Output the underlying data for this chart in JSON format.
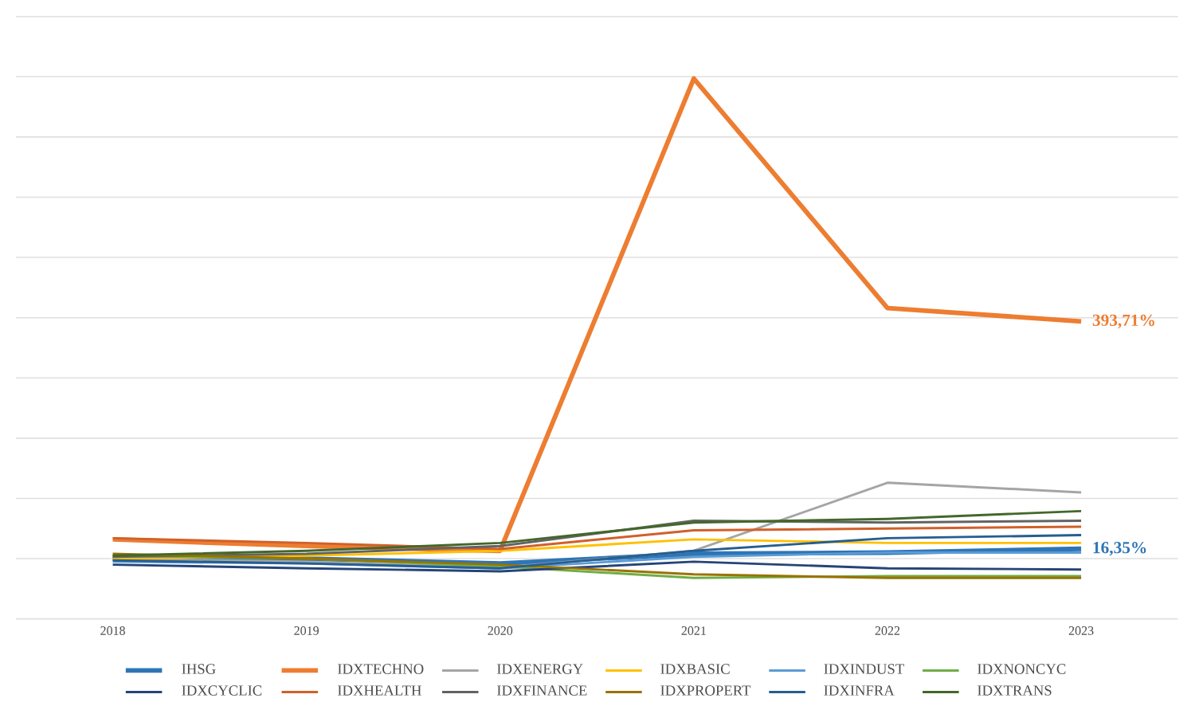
{
  "chart_data": {
    "type": "line",
    "categories": [
      "2018",
      "2019",
      "2020",
      "2021",
      "2022",
      "2023"
    ],
    "ylim": [
      -100,
      900
    ],
    "yticks": [
      {
        "value": -100,
        "label": null
      },
      {
        "value": 0,
        "label": null
      },
      {
        "value": 100,
        "label": null
      },
      {
        "value": 200,
        "label": null
      },
      {
        "value": 300,
        "label": null
      },
      {
        "value": 400,
        "label": null
      },
      {
        "value": 500,
        "label": null
      },
      {
        "value": 600,
        "label": null
      },
      {
        "value": 700,
        "label": null
      },
      {
        "value": 800,
        "label": null
      },
      {
        "value": 900,
        "label": null
      }
    ],
    "tick_labels": "x",
    "grid": "y",
    "legend": "bottom",
    "series": [
      {
        "name": "IHSG",
        "color": "#2e75b6",
        "values": [
          0,
          0,
          -8,
          8,
          10,
          16.35
        ],
        "value_labels": [
          null,
          null,
          null,
          null,
          null,
          "16,35%"
        ]
      },
      {
        "name": "IDXTECHNO",
        "color": "#ed7d31",
        "values": [
          32,
          21,
          13,
          797,
          416,
          393.71
        ],
        "value_labels": [
          null,
          null,
          null,
          null,
          null,
          "393,71%"
        ]
      },
      {
        "name": "IDXENERGY",
        "color": "#a5a5a5",
        "values": [
          0,
          -5,
          -15,
          13,
          126,
          110
        ]
      },
      {
        "name": "IDXBASIC",
        "color": "#ffc000",
        "values": [
          0,
          5,
          13,
          32,
          26,
          26
        ]
      },
      {
        "name": "IDXINDUST",
        "color": "#5b9bd5",
        "values": [
          -5,
          -8,
          -16,
          3,
          10,
          10
        ]
      },
      {
        "name": "IDXNONCYC",
        "color": "#70ad47",
        "values": [
          5,
          0,
          -13,
          -32,
          -29,
          -29
        ]
      },
      {
        "name": "IDXCYCLIC",
        "color": "#264478",
        "values": [
          -10,
          -16,
          -21,
          -5,
          -16,
          -18
        ]
      },
      {
        "name": "IDXHEALTH",
        "color": "#d0602a",
        "values": [
          34,
          26,
          16,
          47,
          50,
          53
        ]
      },
      {
        "name": "IDXFINANCE",
        "color": "#636363",
        "values": [
          3,
          8,
          21,
          63,
          60,
          63
        ]
      },
      {
        "name": "IDXPROPERT",
        "color": "#997300",
        "values": [
          8,
          0,
          -10,
          -26,
          -32,
          -32
        ]
      },
      {
        "name": "IDXINFRA",
        "color": "#255e91",
        "values": [
          -3,
          -8,
          -16,
          13,
          34,
          39
        ]
      },
      {
        "name": "IDXTRANS",
        "color": "#43682b",
        "values": [
          5,
          13,
          26,
          60,
          66,
          79
        ]
      }
    ]
  }
}
